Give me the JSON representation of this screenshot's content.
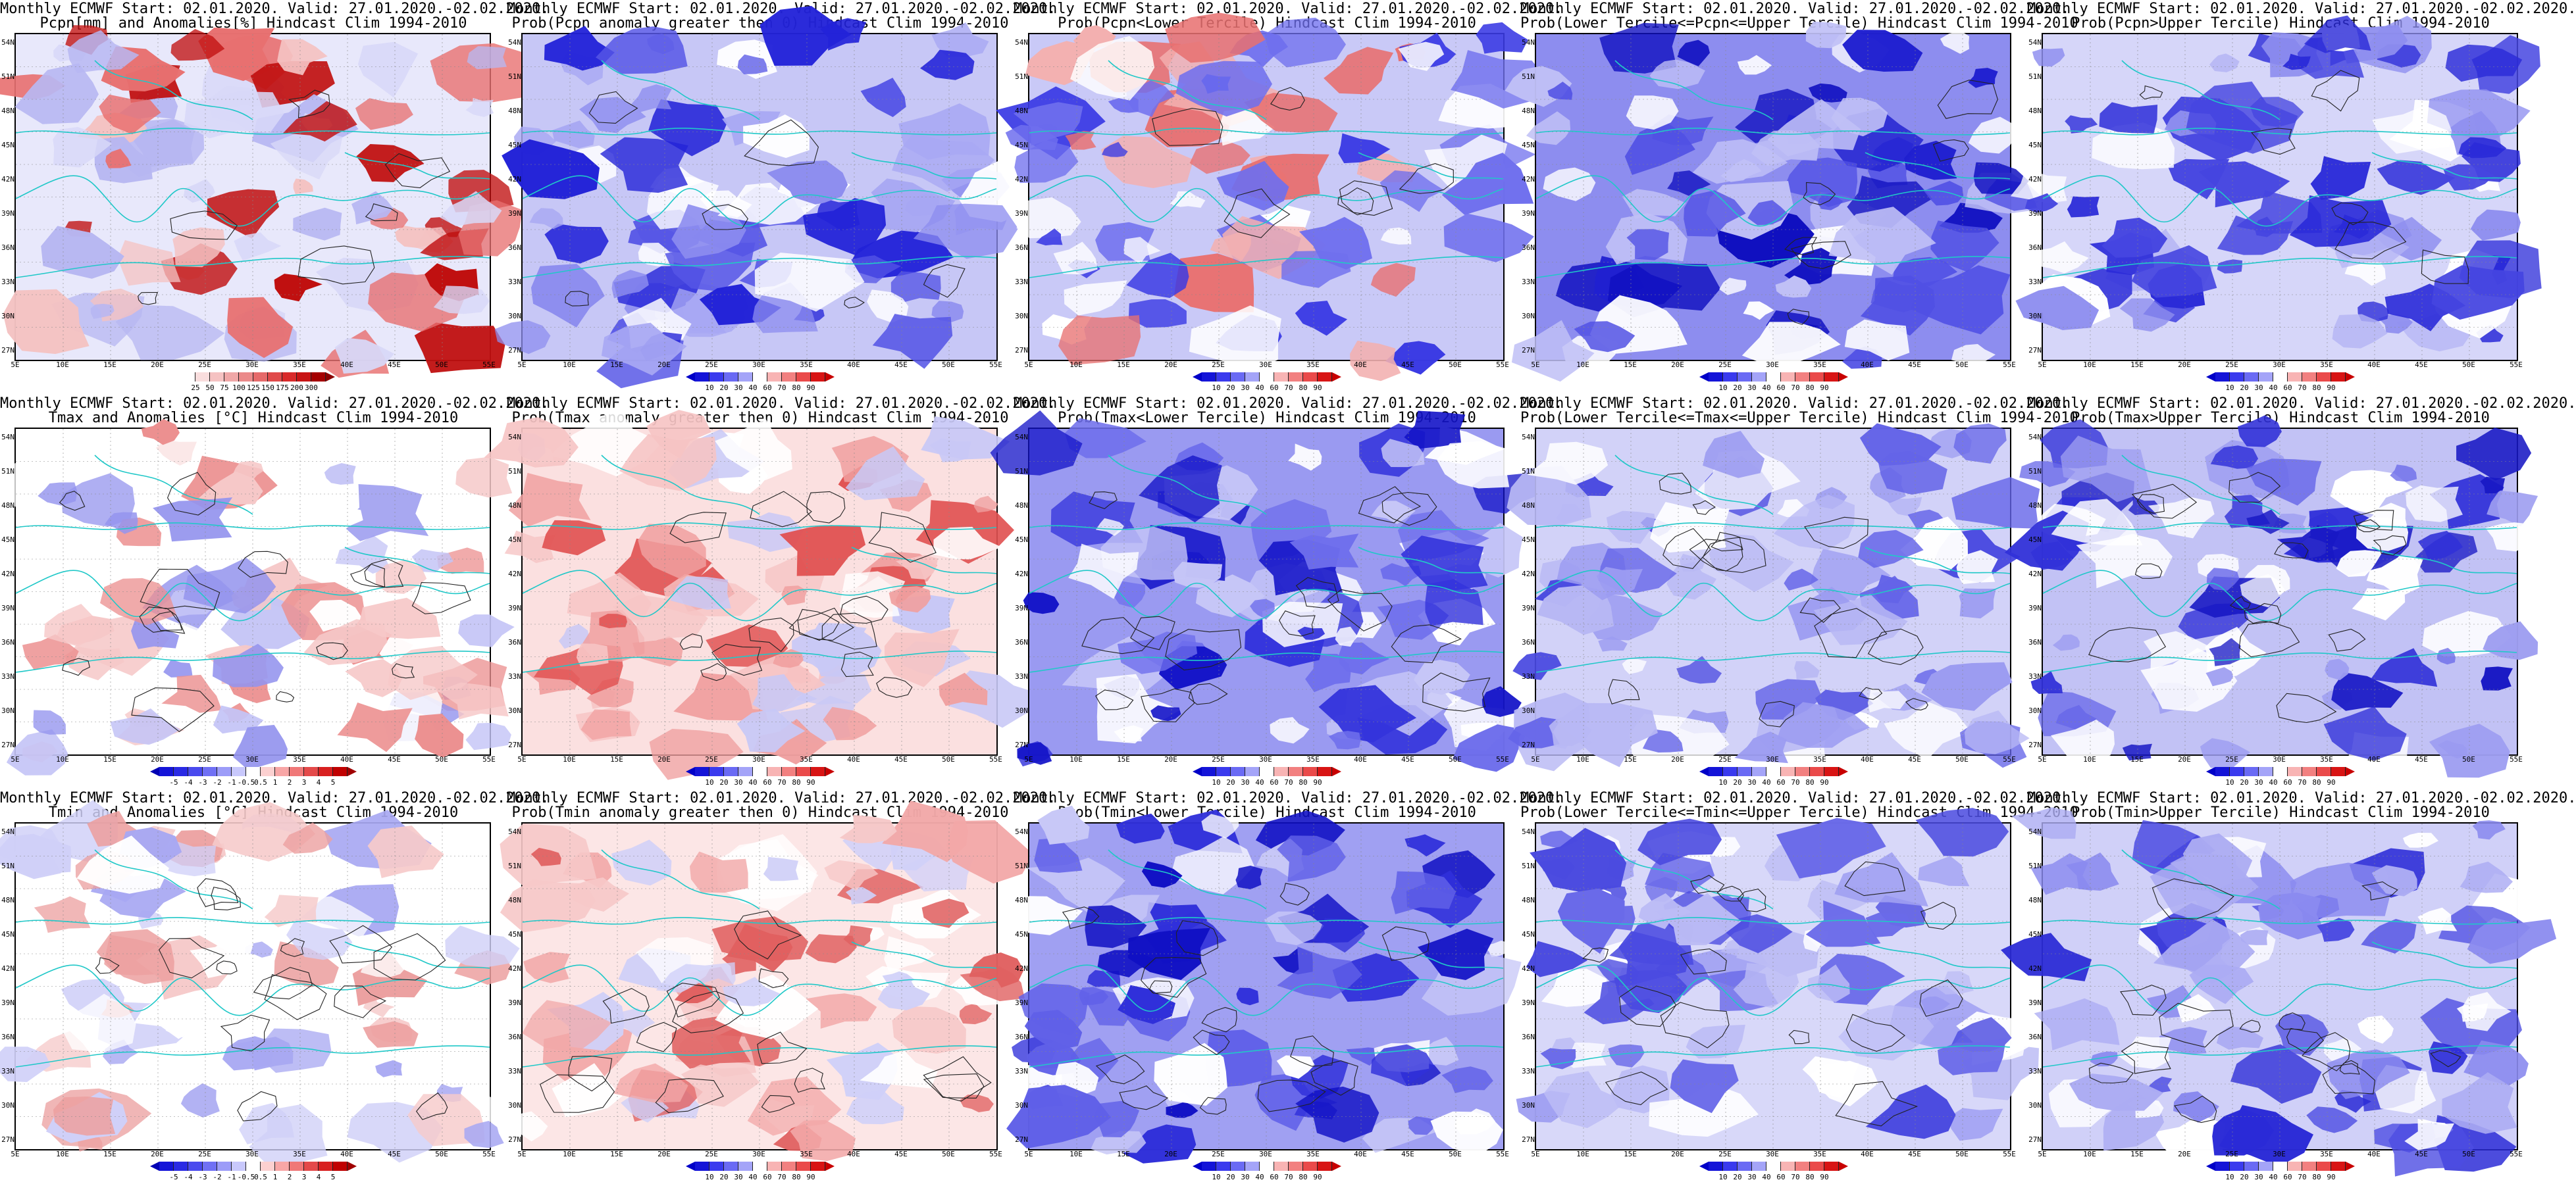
{
  "lat_ticks": [
    "54N",
    "51N",
    "48N",
    "45N",
    "42N",
    "39N",
    "36N",
    "33N",
    "30N",
    "27N"
  ],
  "lon_ticks": [
    "5E",
    "10E",
    "15E",
    "20E",
    "25E",
    "30E",
    "35E",
    "40E",
    "45E",
    "50E",
    "55E"
  ],
  "colorbars": {
    "pcpn_anom": {
      "labels": [
        "25",
        "50",
        "75",
        "100",
        "125",
        "150",
        "175",
        "200",
        "300"
      ],
      "colors": [
        "#ffffff",
        "#f9dddd",
        "#f5c2c2",
        "#f0a7a7",
        "#eb8a8a",
        "#e66a6a",
        "#e04a4a",
        "#d92a2a",
        "#c81414",
        "#a50000"
      ],
      "low": "#ffffff",
      "high": "#8b0000"
    },
    "prob": {
      "labels": [
        "10",
        "20",
        "30",
        "40",
        "60",
        "70",
        "80",
        "90"
      ],
      "colors": [
        "#1414d8",
        "#3a3aee",
        "#6a6af4",
        "#a4a4f8",
        "#ffffff",
        "#f8b4b4",
        "#f28080",
        "#ea4a4a",
        "#d81414"
      ],
      "low": "#0000c8",
      "high": "#c80000"
    },
    "temp_anom": {
      "labels": [
        "-5",
        "-4",
        "-3",
        "-2",
        "-1",
        "-0.5",
        "0.5",
        "1",
        "2",
        "3",
        "4",
        "5"
      ],
      "colors": [
        "#1414d8",
        "#2a2ae4",
        "#4a4aee",
        "#7070f4",
        "#9c9cf8",
        "#c8c8fc",
        "#ffffff",
        "#fcd0d0",
        "#f8a6a6",
        "#f07878",
        "#e44a4a",
        "#d82020",
        "#c00000"
      ],
      "low": "#0000b4",
      "high": "#a00000"
    }
  },
  "panels": [
    {
      "line1": "Monthly ECMWF Start: 02.01.2020. Valid: 27.01.2020.-02.02.2020.",
      "line2": "Pcpn[mm] and Anomalies[%] Hindcast Clim 1994-2010",
      "bar": "pcpn_anom",
      "palette": "pcpn",
      "scheme": "pcpn"
    },
    {
      "line1": "Monthly ECMWF Start: 02.01.2020. Valid: 27.01.2020.-02.02.2020.",
      "line2": "Prob(Pcpn anomaly greater then 0) Hindcast Clim 1994-2010",
      "bar": "prob",
      "palette": "prob",
      "scheme": "pcpn_pos"
    },
    {
      "line1": "Monthly ECMWF Start: 02.01.2020. Valid: 27.01.2020.-02.02.2020.",
      "line2": "Prob(Pcpn<Lower Tercile) Hindcast Clim 1994-2010",
      "bar": "prob",
      "palette": "prob",
      "scheme": "pcpn_low"
    },
    {
      "line1": "Monthly ECMWF Start: 02.01.2020. Valid: 27.01.2020.-02.02.2020.",
      "line2": "Prob(Lower Tercile<=Pcpn<=Upper Tercile) Hindcast Clim 1994-2010",
      "bar": "prob",
      "palette": "prob",
      "scheme": "pcpn_mid"
    },
    {
      "line1": "Monthly ECMWF Start: 02.01.2020. Valid: 27.01.2020.-02.02.2020.",
      "line2": "Prob(Pcpn>Upper Tercile) Hindcast Clim 1994-2010",
      "bar": "prob",
      "palette": "prob",
      "scheme": "pcpn_up"
    },
    {
      "line1": "Monthly ECMWF Start: 02.01.2020. Valid: 27.01.2020.-02.02.2020.",
      "line2": "Tmax and Anomalies [°C] Hindcast Clim 1994-2010",
      "bar": "temp_anom",
      "palette": "temp",
      "scheme": "tmax_anom"
    },
    {
      "line1": "Monthly ECMWF Start: 02.01.2020. Valid: 27.01.2020.-02.02.2020.",
      "line2": "Prob(Tmax anomaly greater then 0) Hindcast Clim 1994-2010",
      "bar": "prob",
      "palette": "prob",
      "scheme": "tmax_pos"
    },
    {
      "line1": "Monthly ECMWF Start: 02.01.2020. Valid: 27.01.2020.-02.02.2020.",
      "line2": "Prob(Tmax<Lower Tercile) Hindcast Clim 1994-2010",
      "bar": "prob",
      "palette": "prob",
      "scheme": "tmax_low"
    },
    {
      "line1": "Monthly ECMWF Start: 02.01.2020. Valid: 27.01.2020.-02.02.2020.",
      "line2": "Prob(Lower Tercile<=Tmax<=Upper Tercile) Hindcast Clim 1994-2010",
      "bar": "prob",
      "palette": "prob",
      "scheme": "tmax_mid"
    },
    {
      "line1": "Monthly ECMWF Start: 02.01.2020. Valid: 27.01.2020.-02.02.2020.",
      "line2": "Prob(Tmax>Upper Tercile) Hindcast Clim 1994-2010",
      "bar": "prob",
      "palette": "prob",
      "scheme": "tmax_up"
    },
    {
      "line1": "Monthly ECMWF Start: 02.01.2020. Valid: 27.01.2020.-02.02.2020.",
      "line2": "Tmin and Anomalies [°C] Hindcast Clim 1994-2010",
      "bar": "temp_anom",
      "palette": "temp",
      "scheme": "tmin_anom"
    },
    {
      "line1": "Monthly ECMWF Start: 02.01.2020. Valid: 27.01.2020.-02.02.2020.",
      "line2": "Prob(Tmin anomaly greater then 0) Hindcast Clim 1994-2010",
      "bar": "prob",
      "palette": "prob",
      "scheme": "tmin_pos"
    },
    {
      "line1": "Monthly ECMWF Start: 02.01.2020. Valid: 27.01.2020.-02.02.2020.",
      "line2": "Prob(Tmin<Lower Tercile) Hindcast Clim 1994-2010",
      "bar": "prob",
      "palette": "prob",
      "scheme": "tmin_low"
    },
    {
      "line1": "Monthly ECMWF Start: 02.01.2020. Valid: 27.01.2020.-02.02.2020.",
      "line2": "Prob(Lower Tercile<=Tmin<=Upper Tercile) Hindcast Clim 1994-2010",
      "bar": "prob",
      "palette": "prob",
      "scheme": "tmin_mid"
    },
    {
      "line1": "Monthly ECMWF Start: 02.01.2020. Valid: 27.01.2020.-02.02.2020.",
      "line2": "Prob(Tmin>Upper Tercile) Hindcast Clim 1994-2010",
      "bar": "prob",
      "palette": "prob",
      "scheme": "tmin_up"
    }
  ]
}
